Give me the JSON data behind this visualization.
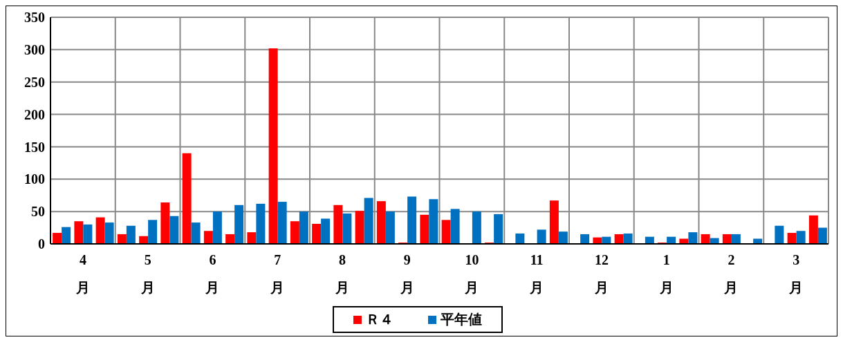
{
  "chart_data": {
    "type": "bar",
    "categories": [
      null,
      "4月",
      null,
      null,
      "5月",
      null,
      null,
      "6月",
      null,
      null,
      "7月",
      null,
      null,
      "8月",
      null,
      null,
      "9月",
      null,
      null,
      "10月",
      null,
      null,
      "11月",
      null,
      null,
      "12月",
      null,
      null,
      "1月",
      null,
      null,
      "2月",
      null,
      null,
      "3月",
      null
    ],
    "series": [
      {
        "name": "Ｒ４",
        "color": "#ff0000",
        "values": [
          17,
          35,
          41,
          15,
          12,
          64,
          140,
          20,
          15,
          18,
          302,
          35,
          31,
          60,
          51,
          66,
          2,
          45,
          37,
          0,
          2,
          0,
          0,
          67,
          0,
          10,
          15,
          0,
          2,
          8,
          15,
          15,
          0,
          0,
          17,
          44
        ]
      },
      {
        "name": "平年値",
        "color": "#0070c0",
        "values": [
          26,
          30,
          33,
          28,
          37,
          43,
          33,
          50,
          60,
          62,
          65,
          50,
          39,
          47,
          71,
          50,
          73,
          69,
          54,
          50,
          46,
          16,
          22,
          19,
          15,
          11,
          16,
          11,
          11,
          18,
          9,
          15,
          8,
          28,
          20,
          25
        ]
      }
    ],
    "ylim": [
      0,
      350
    ],
    "yticks": [
      0,
      50,
      100,
      150,
      200,
      250,
      300,
      350
    ],
    "grid": true,
    "legend": "bottom"
  }
}
